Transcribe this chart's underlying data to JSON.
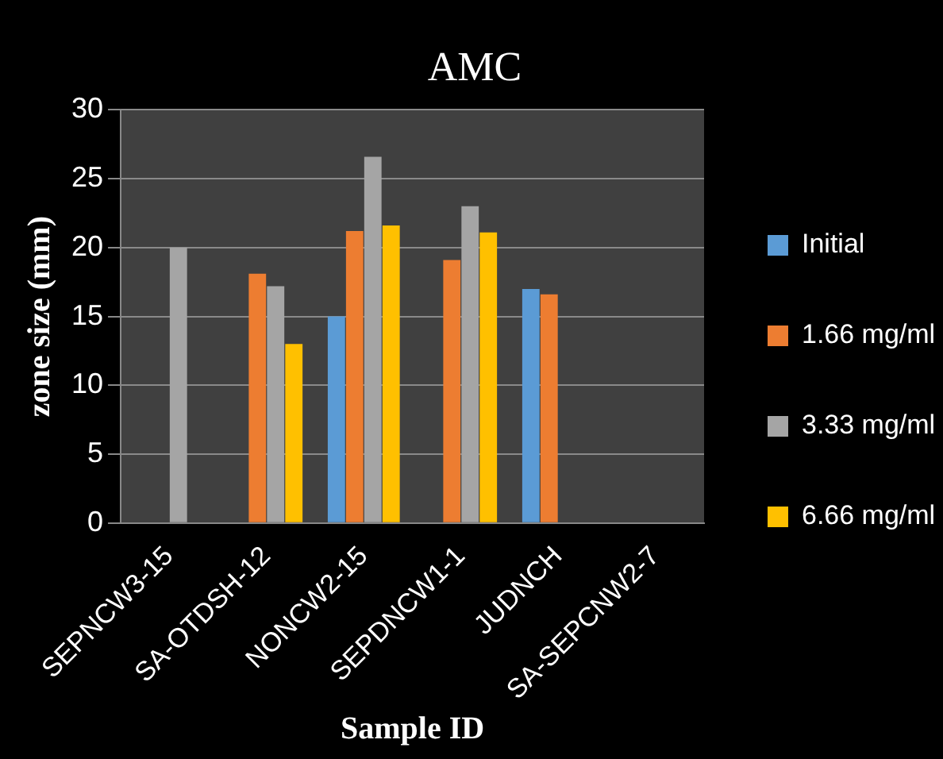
{
  "chart_data": {
    "type": "bar",
    "title": "AMC",
    "xlabel": "Sample ID",
    "ylabel": "zone size (mm)",
    "categories": [
      "SEPNCW3-15",
      "SA-OTDSH-12",
      "NONCW2-15",
      "SEPDNCW1-1",
      "JUDNCH",
      "SA-SEPCNW2-7"
    ],
    "series": [
      {
        "name": "Initial",
        "color": "#5b9bd5",
        "values": [
          null,
          null,
          15,
          null,
          17,
          null
        ]
      },
      {
        "name": "1.66 mg/ml",
        "color": "#ed7d31",
        "values": [
          null,
          18.1,
          21.2,
          19.1,
          16.6,
          null
        ]
      },
      {
        "name": "3.33 mg/ml",
        "color": "#a5a5a5",
        "values": [
          20,
          17.2,
          26.6,
          23,
          null,
          null
        ]
      },
      {
        "name": "6.66 mg/ml",
        "color": "#ffc000",
        "values": [
          null,
          13,
          21.6,
          21.1,
          null,
          null
        ]
      }
    ],
    "ylim": [
      0,
      30
    ],
    "yticks": [
      0,
      5,
      10,
      15,
      20,
      25,
      30
    ],
    "grid": "y",
    "legend": "right"
  }
}
